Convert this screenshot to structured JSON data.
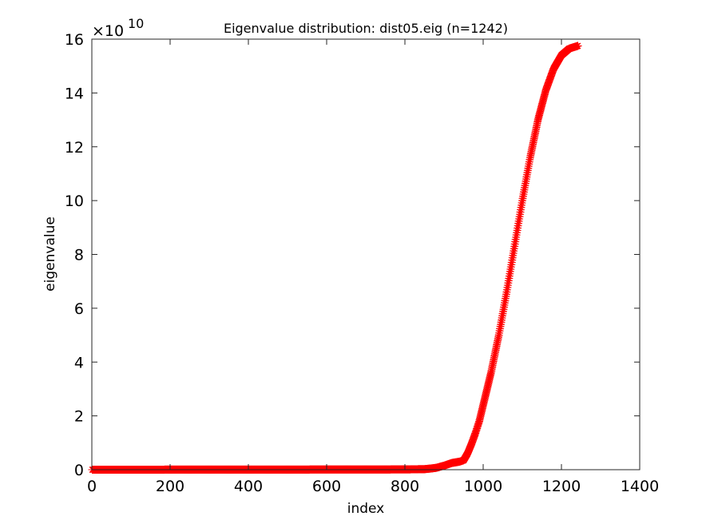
{
  "chart_data": {
    "type": "scatter",
    "title": "Eigenvalue distribution: dist05.eig (n=1242)",
    "xlabel": "index",
    "ylabel": "eigenvalue",
    "y_multiplier": {
      "base": "×10",
      "exponent": "10"
    },
    "xlim": [
      0,
      1400
    ],
    "ylim": [
      0,
      16
    ],
    "y_scale_factor": 10000000000,
    "xticks": [
      "0",
      "200",
      "400",
      "600",
      "800",
      "1000",
      "1200",
      "1400"
    ],
    "yticks": [
      "0",
      "2",
      "4",
      "6",
      "8",
      "10",
      "12",
      "14",
      "16"
    ],
    "marker": "*",
    "marker_color": "#ff0000",
    "grid": false,
    "legend": "none",
    "n_points": 1242,
    "series": [
      {
        "x": [
          1,
          100,
          200,
          300,
          400,
          500,
          600,
          700,
          800,
          850,
          870,
          880,
          900,
          920,
          940,
          950,
          960,
          970,
          980,
          990,
          1000,
          1020,
          1040,
          1060,
          1080,
          1100,
          1120,
          1140,
          1160,
          1180,
          1200,
          1220,
          1242
        ],
        "values": [
          0.0,
          0.001,
          0.002,
          0.003,
          0.004,
          0.005,
          0.006,
          0.008,
          0.01,
          0.02,
          0.05,
          0.07,
          0.15,
          0.25,
          0.3,
          0.35,
          0.6,
          0.95,
          1.35,
          1.8,
          2.4,
          3.6,
          5.0,
          6.6,
          8.3,
          10.0,
          11.6,
          13.0,
          14.1,
          14.9,
          15.4,
          15.65,
          15.75
        ]
      }
    ]
  }
}
